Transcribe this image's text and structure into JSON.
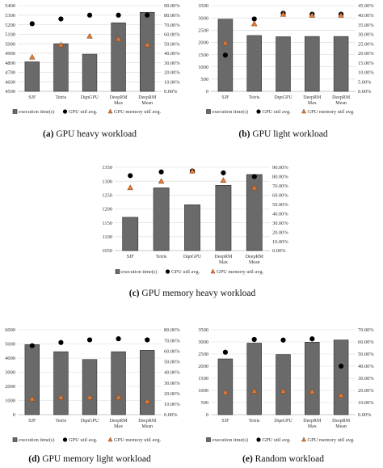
{
  "legend": {
    "exec": "execution time(s)",
    "gpu_util": "GPU util avg.",
    "gpu_mem": "GPU memory util avg."
  },
  "categories": [
    [
      "SJF"
    ],
    [
      "Tetris"
    ],
    [
      "DqnGPU"
    ],
    [
      "DeepRM",
      "Max"
    ],
    [
      "DeepRM",
      "Mean"
    ]
  ],
  "colors": {
    "bar": "#6a6a6a",
    "dot": "#000000",
    "triangle": "#e07b39",
    "grid": "#d9d9d9"
  },
  "chart_data": [
    {
      "type": "bar",
      "caption_label": "(a)",
      "caption_text": "GPU heavy workload",
      "categories": [
        "SJF",
        "Tetris",
        "DqnGPU",
        "DeepRM Max",
        "DeepRM Mean"
      ],
      "y_left": {
        "min": 4500,
        "max": 5400,
        "ticks": [
          4500,
          4600,
          4700,
          4800,
          4900,
          5000,
          5100,
          5200,
          5300,
          5400
        ]
      },
      "y_right": {
        "min": 0,
        "max": 90,
        "step": 10,
        "decimals": 2
      },
      "series": [
        {
          "name": "execution time(s)",
          "kind": "bar",
          "axis": "left",
          "values": [
            4810,
            5000,
            4890,
            5220,
            5330
          ]
        },
        {
          "name": "GPU util avg.",
          "kind": "dot",
          "axis": "right",
          "values": [
            71,
            76,
            80,
            80,
            80
          ]
        },
        {
          "name": "GPU memory util avg.",
          "kind": "triangle",
          "axis": "right",
          "values": [
            36,
            49,
            58,
            55,
            49
          ]
        }
      ]
    },
    {
      "type": "bar",
      "caption_label": "(b)",
      "caption_text": "GPU light workload",
      "categories": [
        "SJF",
        "Tetris",
        "DqnGPU",
        "DeepRM Max",
        "DeepRM Mean"
      ],
      "y_left": {
        "min": 0,
        "max": 3500,
        "ticks": [
          0,
          500,
          1000,
          1500,
          2000,
          2500,
          3000,
          3500
        ]
      },
      "y_right": {
        "min": 0,
        "max": 45,
        "step": 5,
        "decimals": 2
      },
      "series": [
        {
          "name": "execution time(s)",
          "kind": "bar",
          "axis": "left",
          "values": [
            2950,
            2280,
            2230,
            2240,
            2240
          ]
        },
        {
          "name": "GPU util avg.",
          "kind": "dot",
          "axis": "right",
          "values": [
            19,
            38,
            41,
            40.5,
            40.5
          ]
        },
        {
          "name": "GPU memory util avg.",
          "kind": "triangle",
          "axis": "right",
          "values": [
            25.5,
            35.5,
            40.5,
            40,
            40
          ]
        }
      ]
    },
    {
      "type": "bar",
      "caption_label": "(c)",
      "caption_text": "GPU memory heavy workload",
      "categories": [
        "SJF",
        "Tetris",
        "DqnGPU",
        "DeepRM Max",
        "DeepRM Mean"
      ],
      "y_left": {
        "min": 1050,
        "max": 1350,
        "ticks": [
          1050,
          1100,
          1150,
          1200,
          1250,
          1300,
          1350
        ]
      },
      "y_right": {
        "min": 0,
        "max": 90,
        "step": 10,
        "decimals": 2
      },
      "series": [
        {
          "name": "execution time(s)",
          "kind": "bar",
          "axis": "left",
          "values": [
            1170,
            1276,
            1215,
            1285,
            1324
          ]
        },
        {
          "name": "GPU util avg.",
          "kind": "dot",
          "axis": "right",
          "values": [
            81,
            85,
            86,
            84,
            80
          ]
        },
        {
          "name": "GPU memory util avg.",
          "kind": "triangle",
          "axis": "right",
          "values": [
            68,
            75,
            86,
            76,
            68
          ]
        }
      ]
    },
    {
      "type": "bar",
      "caption_label": "(d)",
      "caption_text": "GPU memory light workload",
      "categories": [
        "SJF",
        "Tetris",
        "DqnGPU",
        "DeepRM Max",
        "DeepRM Mean"
      ],
      "y_left": {
        "min": 0,
        "max": 6000,
        "ticks": [
          0,
          1000,
          2000,
          3000,
          4000,
          5000,
          6000
        ]
      },
      "y_right": {
        "min": 0,
        "max": 80,
        "step": 10,
        "decimals": 2
      },
      "series": [
        {
          "name": "execution time(s)",
          "kind": "bar",
          "axis": "left",
          "values": [
            4950,
            4450,
            3900,
            4450,
            4550
          ]
        },
        {
          "name": "GPU util avg.",
          "kind": "dot",
          "axis": "right",
          "values": [
            65,
            68,
            70.5,
            71.5,
            70.5
          ]
        },
        {
          "name": "GPU memory util avg.",
          "kind": "triangle",
          "axis": "right",
          "values": [
            15,
            16.5,
            16.5,
            16.5,
            12.5
          ]
        }
      ]
    },
    {
      "type": "bar",
      "caption_label": "(e)",
      "caption_text": "Random workload",
      "categories": [
        "SJF",
        "Tetris",
        "DqnGPU",
        "DeepRM Max",
        "DeepRM Mean"
      ],
      "y_left": {
        "min": 0,
        "max": 3500,
        "ticks": [
          0,
          500,
          1000,
          1500,
          2000,
          2500,
          3000,
          3500
        ]
      },
      "y_right": {
        "min": 0,
        "max": 70,
        "step": 10,
        "decimals": 2
      },
      "series": [
        {
          "name": "execution time(s)",
          "kind": "bar",
          "axis": "left",
          "values": [
            2300,
            2950,
            2480,
            2990,
            3080
          ]
        },
        {
          "name": "GPU util avg.",
          "kind": "dot",
          "axis": "right",
          "values": [
            51.5,
            62,
            61.5,
            62.5,
            40
          ]
        },
        {
          "name": "GPU memory util avg.",
          "kind": "triangle",
          "axis": "right",
          "values": [
            18.5,
            19.5,
            19.5,
            19,
            16
          ]
        }
      ]
    }
  ]
}
